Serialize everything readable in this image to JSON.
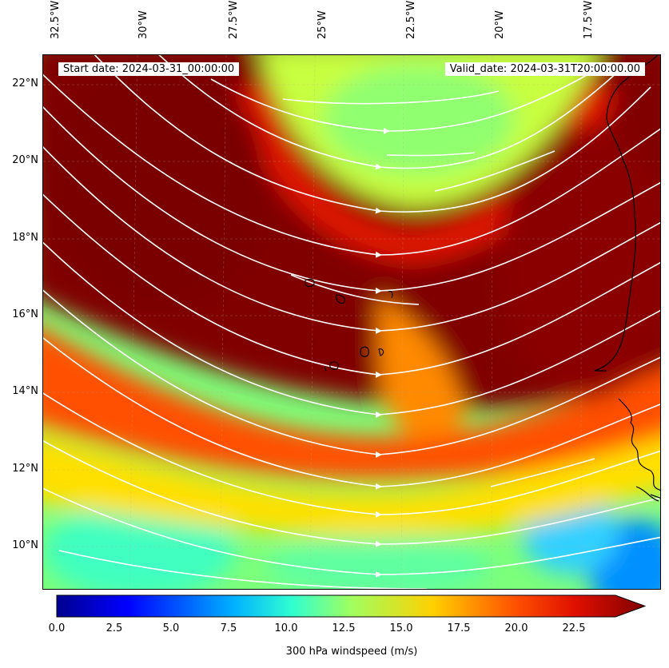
{
  "header": {
    "start_date": "Start date: 2024-03-31_00:00:00",
    "valid_date": "Valid_date: 2024-03-31T20:00:00.00"
  },
  "axes": {
    "lon_labels": [
      "32.5°W",
      "30°W",
      "27.5°W",
      "25°W",
      "22.5°W",
      "20°W",
      "17.5°W"
    ],
    "lat_labels": [
      "22°N",
      "20°N",
      "18°N",
      "16°N",
      "14°N",
      "12°N",
      "10°N"
    ]
  },
  "colorbar": {
    "ticks": [
      "0.0",
      "2.5",
      "5.0",
      "7.5",
      "10.0",
      "12.5",
      "15.0",
      "17.5",
      "20.0",
      "22.5"
    ],
    "label": "300 hPa windspeed (m/s)",
    "extend": "max"
  },
  "map": {
    "variable": "300 hPa windspeed",
    "units": "m/s",
    "overlay": "streamlines",
    "colormap": "jet",
    "colors": {
      "max": "#800000",
      "high": "#e01000",
      "mid": "#ffd000",
      "low": "#30ffd0",
      "min": "#00008f",
      "streamline": "#ffffff",
      "coastline": "#000000"
    }
  }
}
